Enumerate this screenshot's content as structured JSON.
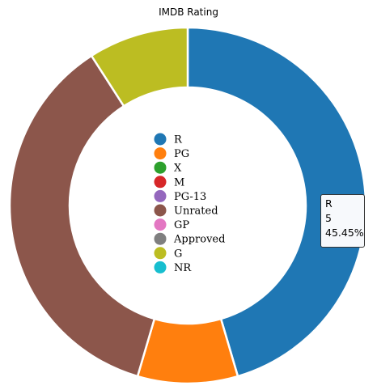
{
  "chart_data": {
    "type": "pie",
    "variant": "donut",
    "title": "IMDB Rating",
    "categories": [
      "R",
      "PG",
      "X",
      "M",
      "PG-13",
      "Unrated",
      "GP",
      "Approved",
      "G",
      "NR"
    ],
    "values": [
      5,
      1,
      0,
      0,
      0,
      4,
      0,
      0,
      1,
      0
    ],
    "colors": [
      "#1f77b4",
      "#ff7f0e",
      "#2ca02c",
      "#d62728",
      "#9467bd",
      "#8c564b",
      "#e377c2",
      "#7f7f7f",
      "#bcbd22",
      "#17becf"
    ],
    "legend_position": "center"
  },
  "tooltip": {
    "category": "R",
    "value": "5",
    "percent": "45.45%"
  }
}
